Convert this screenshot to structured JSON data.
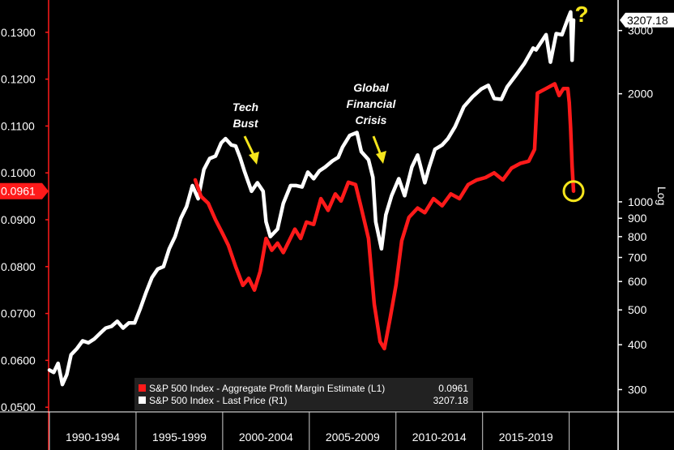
{
  "chart_data": {
    "type": "line",
    "x_range": [
      "1990-01",
      "2020-04"
    ],
    "x_categories": [
      "1990-1994",
      "1995-1999",
      "2000-2004",
      "2005-2009",
      "2010-2014",
      "2015-2019"
    ],
    "left_axis": {
      "min": 0.049,
      "max": 0.1355,
      "ticks": [
        "0.1300",
        "0.1200",
        "0.1100",
        "0.1000",
        "0.0900",
        "0.0800",
        "0.0700",
        "0.0600",
        "0.0500"
      ]
    },
    "right_axis": {
      "scale": "log",
      "min": 260,
      "max": 3500,
      "ticks": [
        "3000",
        "2000",
        "1000",
        "900",
        "800",
        "700",
        "600",
        "500",
        "400",
        "300"
      ],
      "axis_word": "Log"
    },
    "series": [
      {
        "name": "S&P 500 Index - Aggregate Profit Margin Estimate (L1)",
        "axis": "left",
        "color": "#ff1a1a",
        "last_value": "0.0961",
        "points": [
          [
            "1998-06",
            0.0985
          ],
          [
            "1998-10",
            0.095
          ],
          [
            "1999-03",
            0.0935
          ],
          [
            "1999-08",
            0.09
          ],
          [
            "2000-01",
            0.087
          ],
          [
            "2000-05",
            0.0845
          ],
          [
            "2000-10",
            0.08
          ],
          [
            "2001-03",
            0.076
          ],
          [
            "2001-07",
            0.0775
          ],
          [
            "2001-11",
            0.075
          ],
          [
            "2002-03",
            0.079
          ],
          [
            "2002-07",
            0.086
          ],
          [
            "2002-11",
            0.0835
          ],
          [
            "2003-03",
            0.085
          ],
          [
            "2003-07",
            0.083
          ],
          [
            "2003-11",
            0.0855
          ],
          [
            "2004-03",
            0.088
          ],
          [
            "2004-07",
            0.086
          ],
          [
            "2004-11",
            0.0895
          ],
          [
            "2005-04",
            0.089
          ],
          [
            "2005-09",
            0.0945
          ],
          [
            "2006-02",
            0.092
          ],
          [
            "2006-07",
            0.0955
          ],
          [
            "2006-11",
            0.094
          ],
          [
            "2007-04",
            0.098
          ],
          [
            "2007-09",
            0.0975
          ],
          [
            "2008-01",
            0.0925
          ],
          [
            "2008-06",
            0.086
          ],
          [
            "2008-10",
            0.072
          ],
          [
            "2009-02",
            0.064
          ],
          [
            "2009-05",
            0.0625
          ],
          [
            "2009-09",
            0.069
          ],
          [
            "2010-01",
            0.076
          ],
          [
            "2010-05",
            0.0855
          ],
          [
            "2010-10",
            0.0905
          ],
          [
            "2011-04",
            0.0925
          ],
          [
            "2011-09",
            0.0915
          ],
          [
            "2012-03",
            0.0945
          ],
          [
            "2012-09",
            0.093
          ],
          [
            "2013-03",
            0.0955
          ],
          [
            "2013-09",
            0.0945
          ],
          [
            "2014-03",
            0.0975
          ],
          [
            "2014-09",
            0.0985
          ],
          [
            "2015-03",
            0.099
          ],
          [
            "2015-09",
            0.1
          ],
          [
            "2016-03",
            0.0985
          ],
          [
            "2016-09",
            0.101
          ],
          [
            "2017-03",
            0.102
          ],
          [
            "2017-09",
            0.1025
          ],
          [
            "2018-01",
            0.105
          ],
          [
            "2018-03",
            0.117
          ],
          [
            "2018-09",
            0.118
          ],
          [
            "2019-03",
            0.119
          ],
          [
            "2019-06",
            0.1165
          ],
          [
            "2019-09",
            0.118
          ],
          [
            "2019-12",
            0.118
          ],
          [
            "2020-01",
            0.115
          ],
          [
            "2020-02",
            0.1095
          ],
          [
            "2020-03",
            0.1015
          ],
          [
            "2020-04",
            0.0961
          ]
        ]
      },
      {
        "name": "S&P 500 Index - Last Price (R1)",
        "axis": "right",
        "color": "#ffffff",
        "last_value": "3207.18",
        "points": [
          [
            "1990-01",
            340
          ],
          [
            "1990-04",
            335
          ],
          [
            "1990-07",
            355
          ],
          [
            "1990-10",
            310
          ],
          [
            "1991-01",
            330
          ],
          [
            "1991-04",
            375
          ],
          [
            "1991-08",
            390
          ],
          [
            "1991-12",
            410
          ],
          [
            "1992-04",
            405
          ],
          [
            "1992-08",
            415
          ],
          [
            "1992-12",
            430
          ],
          [
            "1993-04",
            445
          ],
          [
            "1993-08",
            450
          ],
          [
            "1993-12",
            465
          ],
          [
            "1994-04",
            445
          ],
          [
            "1994-08",
            460
          ],
          [
            "1994-12",
            460
          ],
          [
            "1995-04",
            505
          ],
          [
            "1995-08",
            560
          ],
          [
            "1995-12",
            615
          ],
          [
            "1996-04",
            650
          ],
          [
            "1996-08",
            660
          ],
          [
            "1996-12",
            740
          ],
          [
            "1997-04",
            800
          ],
          [
            "1997-08",
            900
          ],
          [
            "1997-12",
            970
          ],
          [
            "1998-04",
            1110
          ],
          [
            "1998-08",
            1020
          ],
          [
            "1998-12",
            1230
          ],
          [
            "1999-04",
            1320
          ],
          [
            "1999-08",
            1340
          ],
          [
            "1999-12",
            1460
          ],
          [
            "2000-03",
            1500
          ],
          [
            "2000-07",
            1440
          ],
          [
            "2000-10",
            1430
          ],
          [
            "2001-01",
            1330
          ],
          [
            "2001-04",
            1220
          ],
          [
            "2001-09",
            1070
          ],
          [
            "2002-01",
            1130
          ],
          [
            "2002-05",
            1070
          ],
          [
            "2002-07",
            880
          ],
          [
            "2002-10",
            800
          ],
          [
            "2003-03",
            840
          ],
          [
            "2003-07",
            990
          ],
          [
            "2003-12",
            1110
          ],
          [
            "2004-04",
            1110
          ],
          [
            "2004-08",
            1100
          ],
          [
            "2004-12",
            1210
          ],
          [
            "2005-04",
            1160
          ],
          [
            "2005-08",
            1220
          ],
          [
            "2005-12",
            1250
          ],
          [
            "2006-05",
            1300
          ],
          [
            "2006-09",
            1330
          ],
          [
            "2006-12",
            1420
          ],
          [
            "2007-05",
            1530
          ],
          [
            "2007-10",
            1560
          ],
          [
            "2008-01",
            1380
          ],
          [
            "2008-06",
            1310
          ],
          [
            "2008-09",
            1170
          ],
          [
            "2008-11",
            880
          ],
          [
            "2009-03",
            740
          ],
          [
            "2009-06",
            920
          ],
          [
            "2009-10",
            1040
          ],
          [
            "2010-03",
            1160
          ],
          [
            "2010-07",
            1040
          ],
          [
            "2010-12",
            1250
          ],
          [
            "2011-04",
            1350
          ],
          [
            "2011-09",
            1130
          ],
          [
            "2011-12",
            1250
          ],
          [
            "2012-04",
            1400
          ],
          [
            "2012-09",
            1440
          ],
          [
            "2013-01",
            1500
          ],
          [
            "2013-06",
            1620
          ],
          [
            "2013-12",
            1840
          ],
          [
            "2014-06",
            1960
          ],
          [
            "2014-12",
            2060
          ],
          [
            "2015-05",
            2110
          ],
          [
            "2015-09",
            1940
          ],
          [
            "2016-02",
            1930
          ],
          [
            "2016-06",
            2090
          ],
          [
            "2016-12",
            2250
          ],
          [
            "2017-06",
            2430
          ],
          [
            "2017-12",
            2680
          ],
          [
            "2018-02",
            2650
          ],
          [
            "2018-09",
            2920
          ],
          [
            "2018-12",
            2450
          ],
          [
            "2019-04",
            2940
          ],
          [
            "2019-08",
            2920
          ],
          [
            "2019-12",
            3230
          ],
          [
            "2020-02",
            3380
          ],
          [
            "2020-03",
            2480
          ],
          [
            "2020-04",
            3207.18
          ]
        ]
      }
    ],
    "annotations": [
      {
        "text": [
          "Tech",
          "Bust"
        ],
        "arrow_to": [
          "2001-09",
          0.101
        ]
      },
      {
        "text": [
          "Global",
          "Financial",
          "Crisis"
        ],
        "arrow_to": [
          "2008-03",
          0.1005
        ]
      },
      {
        "text": [
          "?"
        ],
        "color": "#f5e51c"
      }
    ],
    "highlight_circle": {
      "at": [
        "2020-04",
        0.0961
      ],
      "color": "#f5e51c"
    },
    "legend": {
      "placement": "bottom-center",
      "items": [
        {
          "label": "S&P 500 Index - Aggregate Profit Margin Estimate (L1)",
          "value": "0.0961",
          "color": "#ff1a1a"
        },
        {
          "label": "S&P 500 Index - Last Price (R1)",
          "value": "3207.18",
          "color": "#ffffff"
        }
      ]
    },
    "grid": false
  }
}
